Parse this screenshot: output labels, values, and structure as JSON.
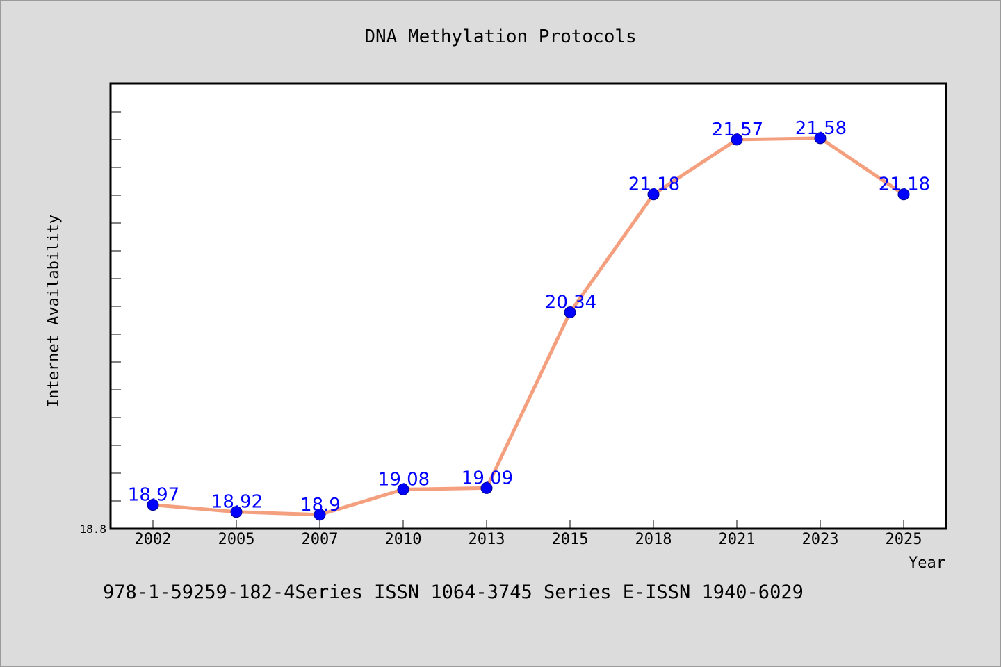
{
  "chart_data": {
    "type": "line",
    "title": "DNA Methylation Protocols",
    "xlabel": "Year",
    "ylabel": "Internet Availability",
    "categories": [
      "2002",
      "2005",
      "2007",
      "2010",
      "2013",
      "2015",
      "2018",
      "2021",
      "2023",
      "2025"
    ],
    "series": [
      {
        "values": [
          18.97,
          18.92,
          18.9,
          19.08,
          19.09,
          20.34,
          21.18,
          21.57,
          21.58,
          21.18
        ],
        "labels": [
          "18.97",
          "18.92",
          "18.9",
          "19.08",
          "19.09",
          "20.34",
          "21.18",
          "21.57",
          "21.58",
          "21.18"
        ]
      }
    ],
    "ylim": [
      18.8,
      21.97
    ],
    "ytick_labels": [
      "18.8"
    ],
    "grid": false,
    "colors": {
      "line": "#f4a07f",
      "marker": "#0000ff",
      "label": "#0000ff",
      "plot_bg": "#ffffff",
      "page_bg": "#dcdcdc"
    }
  },
  "footer": {
    "text": "978-1-59259-182-4Series ISSN 1064-3745 Series E-ISSN 1940-6029"
  }
}
